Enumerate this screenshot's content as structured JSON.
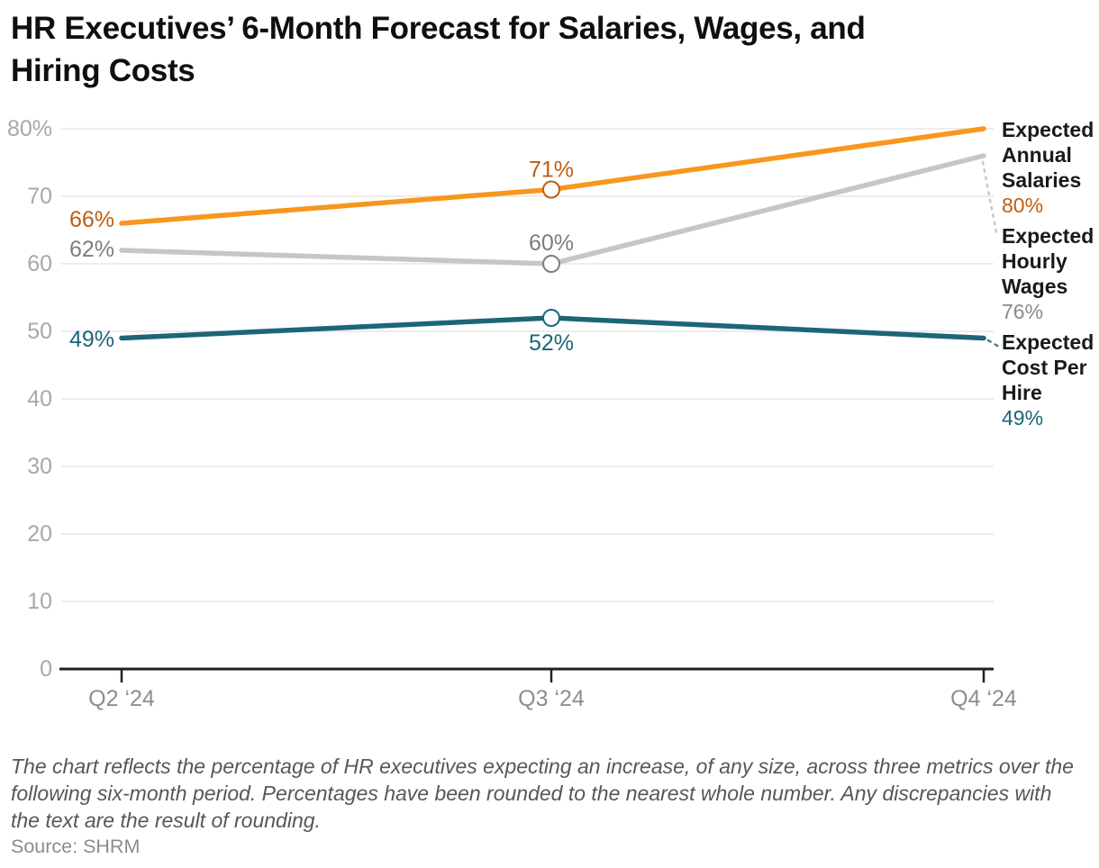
{
  "header": {
    "title": "HR Executives’ 6-Month Forecast for Salaries, Wages, and Hiring Costs",
    "title_lines": [
      "HR Executives’ 6-Month Forecast for Salaries, Wages, and",
      "Hiring Costs"
    ]
  },
  "footer": {
    "note": "The chart reflects the percentage of HR executives expecting an increase, of any size, across three metrics over the following six-month period. Percentages have been rounded to the nearest whole number. Any discrepancies with the text are the result of rounding.",
    "source": "Source: SHRM"
  },
  "colors": {
    "title": "#0f0f0f",
    "grid": "#e5e5e5",
    "axis": "#212121",
    "ytick_label": "#a8a8a8",
    "xtick_label": "#8e8e8e",
    "legend_name": "#1a1a1a",
    "leader_gray": "#c9c9c9",
    "leader_teal": "#44809a",
    "note": "#575757",
    "source": "#8c8c8c"
  },
  "chart_data": {
    "type": "line",
    "title": "HR Executives’ 6-Month Forecast for Salaries, Wages, and Hiring Costs",
    "categories": [
      "Q2 ‘24",
      "Q3 ‘24",
      "Q4 ‘24"
    ],
    "series": [
      {
        "name": "Expected Annual Salaries",
        "values": [
          66,
          71,
          80
        ],
        "point_labels": [
          "66%",
          "71%",
          "80%"
        ],
        "end_label": "80%",
        "line_color": "#f8961d",
        "label_color": "#c05d11",
        "legend_value_color": "#c05d11"
      },
      {
        "name": "Expected Hourly Wages",
        "values": [
          62,
          60,
          76
        ],
        "point_labels": [
          "62%",
          "60%",
          "76%"
        ],
        "end_label": "76%",
        "line_color": "#c6c6c6",
        "label_color": "#7d7d7d",
        "legend_value_color": "#8a8a8a"
      },
      {
        "name": "Expected Cost Per Hire",
        "values": [
          49,
          52,
          49
        ],
        "point_labels": [
          "49%",
          "52%",
          "49%"
        ],
        "end_label": "49%",
        "line_color": "#1d6579",
        "label_color": "#1d6579",
        "legend_value_color": "#1d6579"
      }
    ],
    "ylim": [
      0,
      80
    ],
    "yticks": [
      0,
      10,
      20,
      30,
      40,
      50,
      60,
      70,
      80
    ],
    "ytick_labels": [
      "0",
      "10",
      "20",
      "30",
      "40",
      "50",
      "60",
      "70",
      "80%"
    ],
    "grid": true,
    "legend_position": "right",
    "marker_point_index": 1
  }
}
